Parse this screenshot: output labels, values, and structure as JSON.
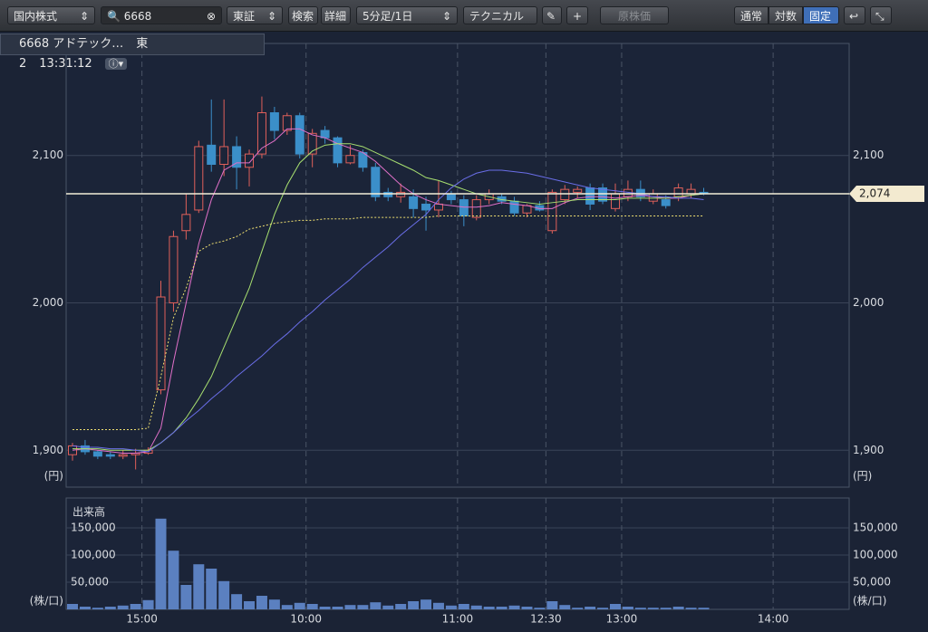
{
  "toolbar": {
    "market": "国内株式",
    "search": "6668",
    "exchange": "東証",
    "buttons": [
      "検索",
      "詳細"
    ],
    "interval": "5分足/1日",
    "technical": "テクニカル",
    "adjusted": "原株価",
    "scale_modes": [
      "通常",
      "対数",
      "固定"
    ]
  },
  "header": {
    "code_name": "6668 アドテック…",
    "market": "東2",
    "time": "13:31:12"
  },
  "chart_data": {
    "type": "candlestick",
    "grid": true,
    "y_unit": "(円)",
    "up_color": "#e0605a",
    "down_color": "#3b8fc9",
    "categories": [
      null,
      null,
      null,
      null,
      null,
      null,
      "15:00",
      null,
      null,
      null,
      null,
      null,
      null,
      null,
      null,
      null,
      null,
      null,
      null,
      "10:00",
      null,
      null,
      null,
      null,
      null,
      null,
      null,
      null,
      null,
      null,
      null,
      "11:00",
      null,
      null,
      null,
      null,
      null,
      null,
      "12:30",
      null,
      null,
      null,
      null,
      null,
      "13:00",
      null,
      null,
      null,
      null,
      null,
      null,
      null,
      null,
      null,
      null,
      null,
      "14:00",
      null,
      null,
      null,
      null,
      null
    ],
    "open": [
      1897,
      1903,
      1899,
      1897,
      1896,
      1897,
      1898,
      1941,
      2000,
      2049,
      2063,
      2107,
      2094,
      2106,
      2092,
      2101,
      2129,
      2117,
      2127,
      2101,
      2117,
      2112,
      2095,
      2102,
      2092,
      2075,
      2072,
      2072,
      2067,
      2063,
      2074,
      2070,
      2058,
      2070,
      2072,
      2069,
      2061,
      2066,
      2049,
      2070,
      2075,
      2078,
      2078,
      2064,
      2072,
      2077,
      2069,
      2070,
      2072,
      2074,
      2075,
      null,
      null,
      null,
      null,
      null,
      null,
      null,
      null,
      null,
      null,
      null
    ],
    "high": [
      1905,
      1907,
      1900,
      1899,
      1900,
      1901,
      1902,
      2015,
      2049,
      2074,
      2110,
      2138,
      2138,
      2113,
      2104,
      2140,
      2133,
      2129,
      2129,
      2118,
      2120,
      2113,
      2107,
      2104,
      2095,
      2078,
      2081,
      2077,
      2072,
      2083,
      2076,
      2073,
      2073,
      2077,
      2074,
      2072,
      2067,
      2069,
      2077,
      2080,
      2079,
      2081,
      2081,
      2081,
      2083,
      2083,
      2077,
      2073,
      2081,
      2081,
      2078,
      null,
      null,
      null,
      null,
      null,
      null,
      null,
      null,
      null,
      null,
      null
    ],
    "low": [
      1893,
      1897,
      1894,
      1894,
      1894,
      1887,
      1897,
      1938,
      1994,
      2043,
      2061,
      2089,
      2086,
      2077,
      2079,
      2098,
      2111,
      2114,
      2098,
      2092,
      2108,
      2092,
      2094,
      2089,
      2069,
      2069,
      2068,
      2058,
      2049,
      2058,
      2067,
      2052,
      2056,
      2067,
      2067,
      2059,
      2058,
      2062,
      2047,
      2067,
      2071,
      2063,
      2067,
      2062,
      2069,
      2069,
      2067,
      2064,
      2069,
      2071,
      2073,
      null,
      null,
      null,
      null,
      null,
      null,
      null,
      null,
      null,
      null,
      null
    ],
    "close": [
      1903,
      1899,
      1896,
      1896,
      1897,
      1898,
      1900,
      2004,
      2045,
      2060,
      2106,
      2094,
      2106,
      2092,
      2101,
      2129,
      2117,
      2127,
      2101,
      2115,
      2112,
      2095,
      2100,
      2092,
      2072,
      2072,
      2075,
      2064,
      2063,
      2067,
      2070,
      2059,
      2070,
      2074,
      2069,
      2061,
      2066,
      2063,
      2075,
      2077,
      2077,
      2067,
      2069,
      2074,
      2077,
      2072,
      2074,
      2066,
      2078,
      2077,
      2074,
      null,
      null,
      null,
      null,
      null,
      null,
      null,
      null,
      null,
      null,
      null
    ],
    "ylim": [
      1875,
      2176
    ],
    "yticks": [
      {
        "value": 1900,
        "label": "1,900"
      },
      {
        "value": 2000,
        "label": "2,000"
      },
      {
        "value": 2100,
        "label": "2,100"
      }
    ],
    "lines": [
      {
        "color": "#e070c8",
        "dash": "none",
        "values": [
          1900,
          1901,
          1900,
          1899,
          1898,
          1898,
          1899,
          1915,
          1960,
          2000,
          2040,
          2070,
          2090,
          2095,
          2095,
          2105,
          2110,
          2118,
          2118,
          2114,
          2112,
          2108,
          2105,
          2102,
          2096,
          2088,
          2080,
          2074,
          2070,
          2067,
          2066,
          2065,
          2065,
          2066,
          2068,
          2067,
          2066,
          2064,
          2064,
          2068,
          2071,
          2072,
          2072,
          2071,
          2072,
          2073,
          2072,
          2071,
          2071,
          2073,
          2074,
          null,
          null,
          null,
          null,
          null,
          null,
          null,
          null,
          null,
          null,
          null
        ]
      },
      {
        "color": "#a8e070",
        "dash": "none",
        "values": [
          1901,
          1901,
          1901,
          1900,
          1900,
          1900,
          1900,
          1905,
          1912,
          1922,
          1935,
          1950,
          1970,
          1990,
          2010,
          2035,
          2060,
          2080,
          2095,
          2103,
          2107,
          2108,
          2108,
          2106,
          2102,
          2098,
          2094,
          2090,
          2085,
          2083,
          2080,
          2077,
          2074,
          2072,
          2070,
          2069,
          2068,
          2067,
          2068,
          2069,
          2070,
          2070,
          2070,
          2070,
          2071,
          2071,
          2071,
          2071,
          2072,
          2073,
          2074,
          null,
          null,
          null,
          null,
          null,
          null,
          null,
          null,
          null,
          null,
          null
        ]
      },
      {
        "color": "#6a6ee8",
        "dash": "none",
        "values": [
          1903,
          1902,
          1902,
          1901,
          1901,
          1900,
          1899,
          1905,
          1912,
          1920,
          1927,
          1935,
          1942,
          1950,
          1957,
          1964,
          1972,
          1979,
          1987,
          1994,
          2002,
          2009,
          2016,
          2024,
          2031,
          2038,
          2046,
          2053,
          2060,
          2070,
          2078,
          2084,
          2088,
          2090,
          2090,
          2089,
          2088,
          2086,
          2084,
          2082,
          2080,
          2078,
          2077,
          2076,
          2075,
          2074,
          2072,
          2072,
          2071,
          2071,
          2070,
          null,
          null,
          null,
          null,
          null,
          null,
          null,
          null,
          null,
          null,
          null
        ]
      },
      {
        "color": "#f0e070",
        "dash": "2 2",
        "values": [
          1914,
          1914,
          1914,
          1914,
          1914,
          1914,
          1915,
          1950,
          1990,
          2010,
          2035,
          2040,
          2042,
          2045,
          2050,
          2052,
          2054,
          2055,
          2056,
          2056,
          2057,
          2057,
          2057,
          2058,
          2058,
          2058,
          2058,
          2058,
          2058,
          2059,
          2059,
          2059,
          2059,
          2059,
          2059,
          2059,
          2059,
          2059,
          2059,
          2059,
          2059,
          2059,
          2059,
          2059,
          2059,
          2059,
          2059,
          2059,
          2059,
          2059,
          2059,
          null,
          null,
          null,
          null,
          null,
          null,
          null,
          null,
          null,
          null,
          null
        ]
      }
    ],
    "last_price": {
      "value": 2074,
      "label": "2,074"
    },
    "volume": {
      "title": "出来高",
      "unit": "(株/口)",
      "color": "#5b80c0",
      "ylim": [
        0,
        205000
      ],
      "yticks": [
        {
          "value": 50000,
          "label": "50,000"
        },
        {
          "value": 100000,
          "label": "100,000"
        },
        {
          "value": 150000,
          "label": "150,000"
        }
      ],
      "values": [
        10000,
        5000,
        3000,
        5000,
        7000,
        10000,
        17000,
        167000,
        108000,
        45000,
        83000,
        75000,
        52000,
        28000,
        15000,
        25000,
        18000,
        8000,
        12000,
        10000,
        5000,
        5000,
        8000,
        8000,
        13000,
        7000,
        10000,
        15000,
        18000,
        12000,
        7000,
        10000,
        7000,
        5000,
        5000,
        7000,
        5000,
        3000,
        15000,
        8000,
        3000,
        5000,
        3000,
        10000,
        5000,
        3000,
        3000,
        3000,
        5000,
        3000,
        3000,
        null,
        null,
        null,
        null,
        null,
        null,
        null,
        null,
        null,
        null,
        null
      ]
    }
  }
}
